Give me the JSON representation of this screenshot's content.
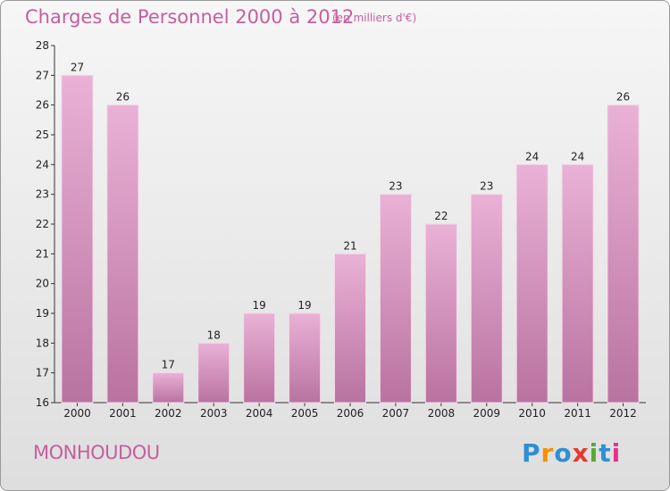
{
  "header": {
    "title": "Charges de Personnel 2000 à 2012",
    "subtitle": "(en milliers d'€)"
  },
  "footer": {
    "commune": "MONHOUDOU",
    "logo": {
      "letters": [
        "P",
        "r",
        "o",
        "x",
        "i",
        "t",
        "i"
      ],
      "colors": [
        "#2e8fd3",
        "#f39200",
        "#2e8fd3",
        "#e53a2c",
        "#5aa832",
        "#2e8fd3",
        "#e5338b"
      ]
    }
  },
  "colors": {
    "bar_light": "#eab1d6",
    "bar_dark": "#b8739f",
    "text_accent": "#c65e9e"
  },
  "chart_data": {
    "type": "bar",
    "categories": [
      "2000",
      "2001",
      "2002",
      "2003",
      "2004",
      "2005",
      "2006",
      "2007",
      "2008",
      "2009",
      "2010",
      "2011",
      "2012"
    ],
    "values": [
      27,
      26,
      17,
      18,
      19,
      19,
      21,
      23,
      22,
      23,
      24,
      24,
      26
    ],
    "title": "Charges de Personnel 2000 à 2012",
    "subtitle": "(en milliers d'€)",
    "xlabel": "",
    "ylabel": "",
    "ylim": [
      16,
      28
    ],
    "yticks": [
      16,
      17,
      18,
      19,
      20,
      21,
      22,
      23,
      24,
      25,
      26,
      27,
      28
    ],
    "grid": false,
    "data_labels": true
  }
}
